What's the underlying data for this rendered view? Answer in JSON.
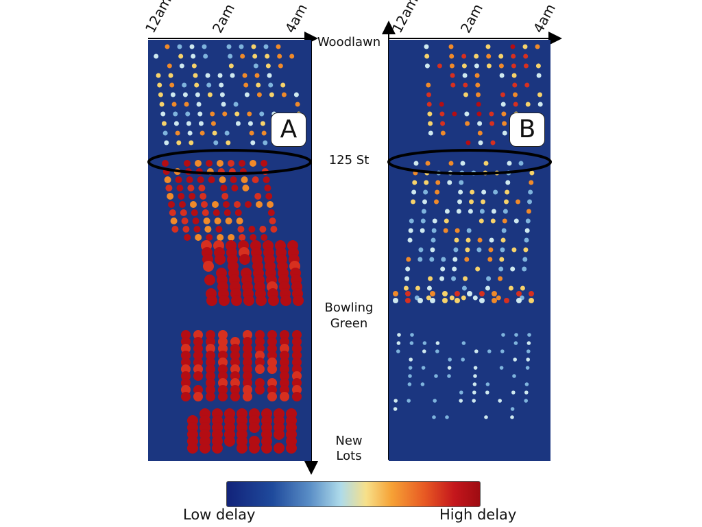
{
  "chart_data": {
    "type": "heatmap",
    "panels": [
      {
        "label": "A",
        "x_ticks": [
          "12am",
          "2am",
          "4am"
        ],
        "highlight": "125 St"
      },
      {
        "label": "B",
        "x_ticks": [
          "12am",
          "2am",
          "4am"
        ],
        "highlight": "125 St"
      }
    ],
    "y_labels": [
      "Woodlawn",
      "125 St",
      "Bowling Green",
      "New Lots"
    ],
    "colorbar": {
      "low_label": "Low delay",
      "high_label": "High delay"
    },
    "colors": {
      "background": "#1b3680",
      "low": "#12237a",
      "high": "#9e0c12"
    }
  },
  "labels": {
    "tick_12am": "12am",
    "tick_2am": "2am",
    "tick_4am": "4am",
    "woodlawn": "Woodlawn",
    "st125": "125 St",
    "bowling_1": "Bowling",
    "bowling_2": "Green",
    "newlots_1": "New",
    "newlots_2": "Lots",
    "panel_a": "A",
    "panel_b": "B",
    "low_delay": "Low delay",
    "high_delay": "High delay"
  }
}
